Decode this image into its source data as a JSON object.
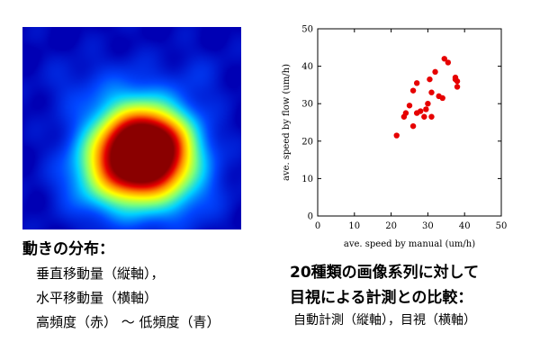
{
  "heatmap": {
    "colors": [
      "#0000b4",
      "#0046ff",
      "#00d2ff",
      "#7dff7a",
      "#ffff00",
      "#ff8c00",
      "#e60000",
      "#8a0000"
    ]
  },
  "chart_data": {
    "type": "scatter",
    "xlabel": "ave. speed by manual (um/h)",
    "ylabel": "ave. speed by flow   (um/h)",
    "xlim": [
      0,
      50
    ],
    "ylim": [
      0,
      50
    ],
    "xticks": [
      "0",
      "10",
      "20",
      "30",
      "40",
      "50"
    ],
    "yticks": [
      "0",
      "10",
      "20",
      "30",
      "40",
      "50"
    ],
    "grid": false,
    "marker_color": "#e60000",
    "points": [
      {
        "x": 21.5,
        "y": 21.5
      },
      {
        "x": 23.5,
        "y": 26.5
      },
      {
        "x": 24.0,
        "y": 27.5
      },
      {
        "x": 25.0,
        "y": 29.5
      },
      {
        "x": 26.0,
        "y": 24.0
      },
      {
        "x": 27.0,
        "y": 27.5
      },
      {
        "x": 26.0,
        "y": 33.5
      },
      {
        "x": 27.0,
        "y": 35.5
      },
      {
        "x": 28.0,
        "y": 28.0
      },
      {
        "x": 29.0,
        "y": 26.5
      },
      {
        "x": 29.5,
        "y": 28.5
      },
      {
        "x": 30.0,
        "y": 30.0
      },
      {
        "x": 31.0,
        "y": 26.5
      },
      {
        "x": 31.0,
        "y": 33.0
      },
      {
        "x": 30.5,
        "y": 36.5
      },
      {
        "x": 32.0,
        "y": 38.5
      },
      {
        "x": 33.0,
        "y": 32.0
      },
      {
        "x": 34.0,
        "y": 31.5
      },
      {
        "x": 34.5,
        "y": 42.0
      },
      {
        "x": 35.5,
        "y": 41.0
      },
      {
        "x": 37.5,
        "y": 37.0
      },
      {
        "x": 38.0,
        "y": 36.0
      },
      {
        "x": 38.0,
        "y": 34.5
      },
      {
        "x": 37.5,
        "y": 36.5
      }
    ]
  },
  "captions": {
    "left": {
      "title": "動きの分布：",
      "vertical": "垂直移動量（縦軸），",
      "horizontal": "水平移動量（横軸）",
      "frequency": "高頻度（赤） 〜 低頻度（青）"
    },
    "right": {
      "line1": "20種類の画像系列に対して",
      "line2": "目視による計測との比較：",
      "line3": "自動計測（縦軸），目視（横軸）"
    }
  }
}
